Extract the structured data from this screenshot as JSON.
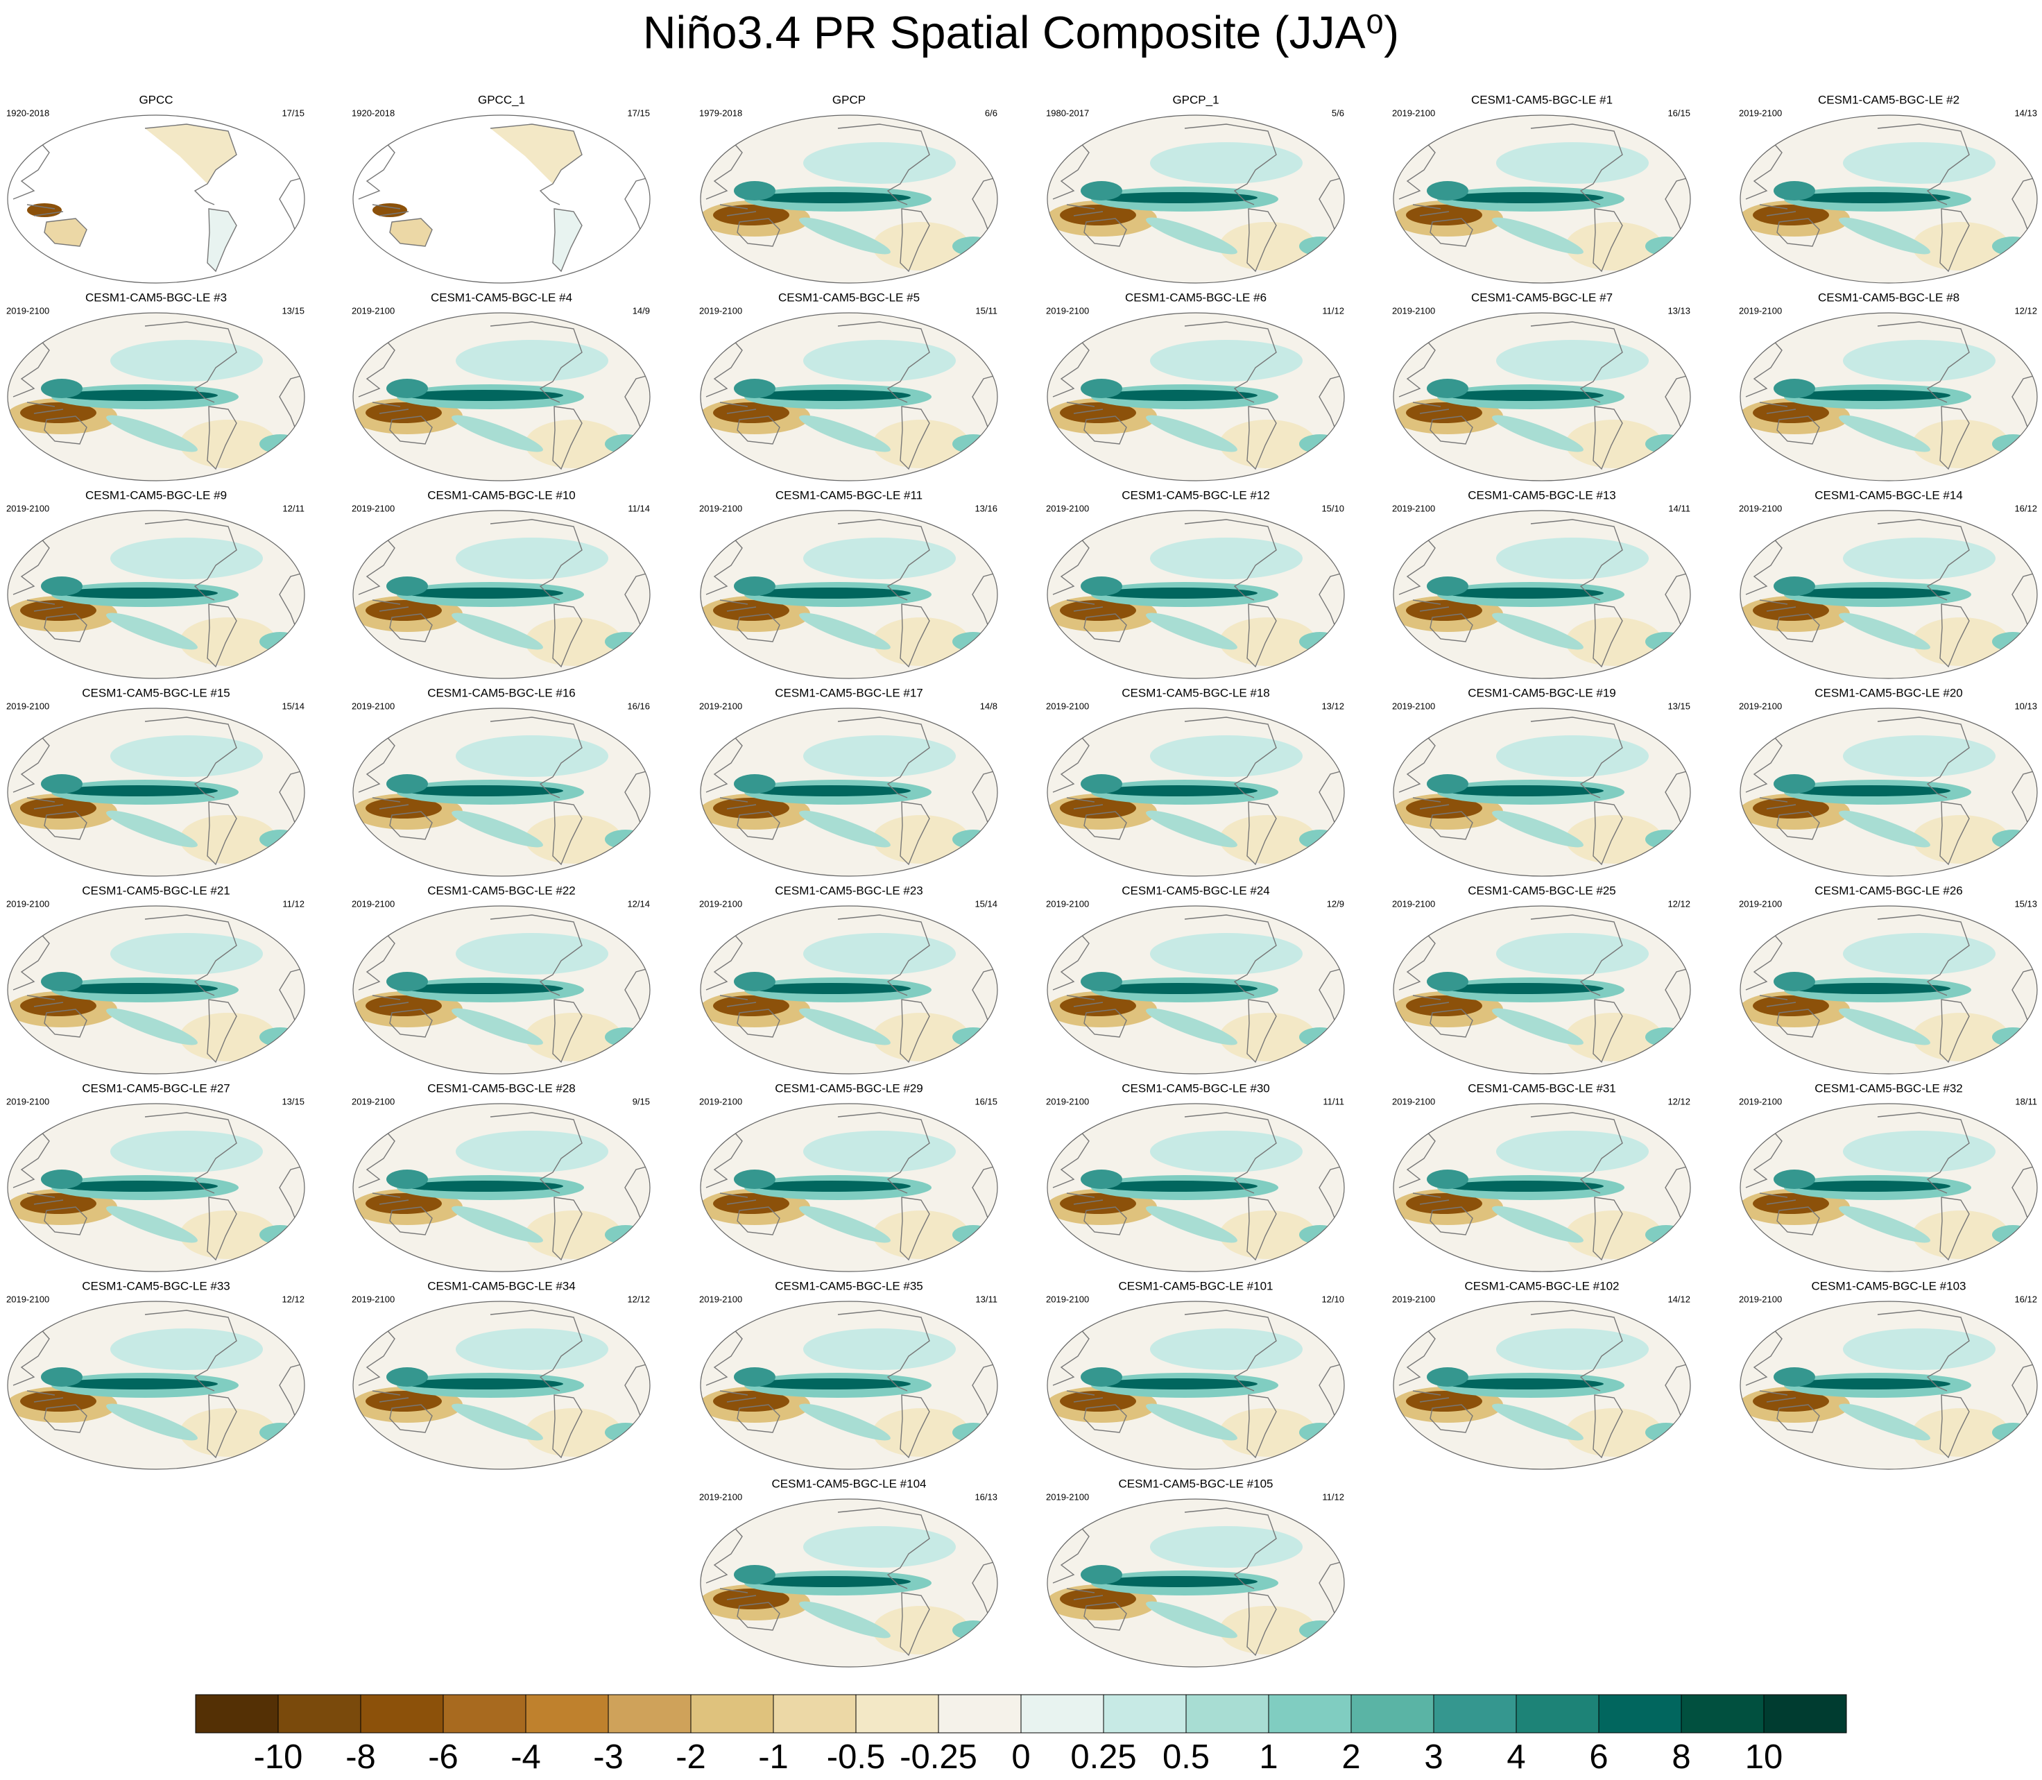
{
  "title": "Niño3.4 PR Spatial Composite (JJA⁰)",
  "panels": [
    {
      "title": "GPCC",
      "period": "1920-2018",
      "count": "17/15"
    },
    {
      "title": "GPCC_1",
      "period": "1920-2018",
      "count": "17/15"
    },
    {
      "title": "GPCP",
      "period": "1979-2018",
      "count": "6/6"
    },
    {
      "title": "GPCP_1",
      "period": "1980-2017",
      "count": "5/6"
    },
    {
      "title": "CESM1-CAM5-BGC-LE #1",
      "period": "2019-2100",
      "count": "16/15"
    },
    {
      "title": "CESM1-CAM5-BGC-LE #2",
      "period": "2019-2100",
      "count": "14/13"
    },
    {
      "title": "CESM1-CAM5-BGC-LE #3",
      "period": "2019-2100",
      "count": "13/15"
    },
    {
      "title": "CESM1-CAM5-BGC-LE #4",
      "period": "2019-2100",
      "count": "14/9"
    },
    {
      "title": "CESM1-CAM5-BGC-LE #5",
      "period": "2019-2100",
      "count": "15/11"
    },
    {
      "title": "CESM1-CAM5-BGC-LE #6",
      "period": "2019-2100",
      "count": "11/12"
    },
    {
      "title": "CESM1-CAM5-BGC-LE #7",
      "period": "2019-2100",
      "count": "13/13"
    },
    {
      "title": "CESM1-CAM5-BGC-LE #8",
      "period": "2019-2100",
      "count": "12/12"
    },
    {
      "title": "CESM1-CAM5-BGC-LE #9",
      "period": "2019-2100",
      "count": "12/11"
    },
    {
      "title": "CESM1-CAM5-BGC-LE #10",
      "period": "2019-2100",
      "count": "11/14"
    },
    {
      "title": "CESM1-CAM5-BGC-LE #11",
      "period": "2019-2100",
      "count": "13/16"
    },
    {
      "title": "CESM1-CAM5-BGC-LE #12",
      "period": "2019-2100",
      "count": "15/10"
    },
    {
      "title": "CESM1-CAM5-BGC-LE #13",
      "period": "2019-2100",
      "count": "14/11"
    },
    {
      "title": "CESM1-CAM5-BGC-LE #14",
      "period": "2019-2100",
      "count": "16/12"
    },
    {
      "title": "CESM1-CAM5-BGC-LE #15",
      "period": "2019-2100",
      "count": "15/14"
    },
    {
      "title": "CESM1-CAM5-BGC-LE #16",
      "period": "2019-2100",
      "count": "16/16"
    },
    {
      "title": "CESM1-CAM5-BGC-LE #17",
      "period": "2019-2100",
      "count": "14/8"
    },
    {
      "title": "CESM1-CAM5-BGC-LE #18",
      "period": "2019-2100",
      "count": "13/12"
    },
    {
      "title": "CESM1-CAM5-BGC-LE #19",
      "period": "2019-2100",
      "count": "13/15"
    },
    {
      "title": "CESM1-CAM5-BGC-LE #20",
      "period": "2019-2100",
      "count": "10/13"
    },
    {
      "title": "CESM1-CAM5-BGC-LE #21",
      "period": "2019-2100",
      "count": "11/12"
    },
    {
      "title": "CESM1-CAM5-BGC-LE #22",
      "period": "2019-2100",
      "count": "12/14"
    },
    {
      "title": "CESM1-CAM5-BGC-LE #23",
      "period": "2019-2100",
      "count": "15/14"
    },
    {
      "title": "CESM1-CAM5-BGC-LE #24",
      "period": "2019-2100",
      "count": "12/9"
    },
    {
      "title": "CESM1-CAM5-BGC-LE #25",
      "period": "2019-2100",
      "count": "12/12"
    },
    {
      "title": "CESM1-CAM5-BGC-LE #26",
      "period": "2019-2100",
      "count": "15/13"
    },
    {
      "title": "CESM1-CAM5-BGC-LE #27",
      "period": "2019-2100",
      "count": "13/15"
    },
    {
      "title": "CESM1-CAM5-BGC-LE #28",
      "period": "2019-2100",
      "count": "9/15"
    },
    {
      "title": "CESM1-CAM5-BGC-LE #29",
      "period": "2019-2100",
      "count": "16/15"
    },
    {
      "title": "CESM1-CAM5-BGC-LE #30",
      "period": "2019-2100",
      "count": "11/11"
    },
    {
      "title": "CESM1-CAM5-BGC-LE #31",
      "period": "2019-2100",
      "count": "12/12"
    },
    {
      "title": "CESM1-CAM5-BGC-LE #32",
      "period": "2019-2100",
      "count": "18/11"
    },
    {
      "title": "CESM1-CAM5-BGC-LE #33",
      "period": "2019-2100",
      "count": "12/12"
    },
    {
      "title": "CESM1-CAM5-BGC-LE #34",
      "period": "2019-2100",
      "count": "12/12"
    },
    {
      "title": "CESM1-CAM5-BGC-LE #35",
      "period": "2019-2100",
      "count": "13/11"
    },
    {
      "title": "CESM1-CAM5-BGC-LE #101",
      "period": "2019-2100",
      "count": "12/10"
    },
    {
      "title": "CESM1-CAM5-BGC-LE #102",
      "period": "2019-2100",
      "count": "14/12"
    },
    {
      "title": "CESM1-CAM5-BGC-LE #103",
      "period": "2019-2100",
      "count": "16/12"
    },
    {
      "title": "CESM1-CAM5-BGC-LE #104",
      "period": "2019-2100",
      "count": "16/13"
    },
    {
      "title": "CESM1-CAM5-BGC-LE #105",
      "period": "2019-2100",
      "count": "11/12"
    }
  ],
  "colorbar": {
    "levels": [
      -10,
      -8,
      -6,
      -4,
      -3,
      -2,
      -1,
      -0.5,
      -0.25,
      0,
      0.25,
      0.5,
      1,
      2,
      3,
      4,
      6,
      8,
      10
    ],
    "colors": [
      "#543005",
      "#7a4a0c",
      "#8c510a",
      "#a86a1f",
      "#bf812d",
      "#cfa25a",
      "#dfc27d",
      "#ecd8a6",
      "#f3e8c6",
      "#f5f2ea",
      "#e8f3f0",
      "#c7eae5",
      "#a8ddd3",
      "#80cdc1",
      "#5ab4a5",
      "#35978f",
      "#1d8377",
      "#01665e",
      "#01503f",
      "#003c30"
    ]
  }
}
